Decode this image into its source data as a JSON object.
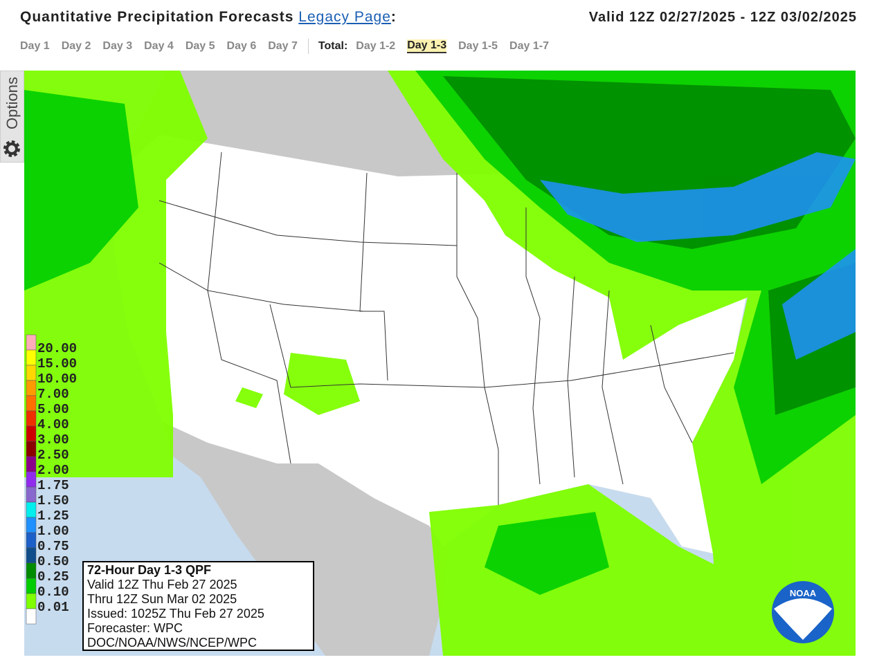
{
  "header": {
    "title": "Quantitative Precipitation Forecasts",
    "legacy_link": "Legacy Page",
    "colon": ":",
    "valid": "Valid 12Z 02/27/2025 - 12Z 03/02/2025"
  },
  "nav": {
    "days": [
      "Day 1",
      "Day 2",
      "Day 3",
      "Day 4",
      "Day 5",
      "Day 6",
      "Day 7"
    ],
    "total_label": "Total:",
    "totals": [
      "Day 1-2",
      "Day 1-3",
      "Day 1-5",
      "Day 1-7"
    ],
    "selected_total_index": 1
  },
  "options_tab": "Options",
  "legend": [
    {
      "label": "20.00",
      "color": "#ffaeb9"
    },
    {
      "label": "15.00",
      "color": "#ffff00"
    },
    {
      "label": "10.00",
      "color": "#ffd700"
    },
    {
      "label": "7.00",
      "color": "#ff9a00"
    },
    {
      "label": "5.00",
      "color": "#ff7000"
    },
    {
      "label": "4.00",
      "color": "#ee3000"
    },
    {
      "label": "3.00",
      "color": "#cd0000"
    },
    {
      "label": "2.50",
      "color": "#8b0000"
    },
    {
      "label": "2.00",
      "color": "#8b008b"
    },
    {
      "label": "1.75",
      "color": "#912cee"
    },
    {
      "label": "1.50",
      "color": "#8968cd"
    },
    {
      "label": "1.25",
      "color": "#00eeee"
    },
    {
      "label": "1.00",
      "color": "#1e90ff"
    },
    {
      "label": "0.75",
      "color": "#1c5fc8"
    },
    {
      "label": "0.50",
      "color": "#104e8b"
    },
    {
      "label": "0.25",
      "color": "#008b00"
    },
    {
      "label": "0.10",
      "color": "#00cd00"
    },
    {
      "label": "0.01",
      "color": "#7fff00"
    }
  ],
  "info_box": {
    "title": "72-Hour Day 1-3 QPF",
    "lines": [
      "Valid 12Z Thu Feb 27 2025",
      "Thru 12Z Sun Mar 02 2025",
      "Issued: 1025Z Thu Feb 27 2025",
      "Forecaster: WPC",
      "DOC/NOAA/NWS/NCEP/WPC"
    ]
  },
  "logo": "NOAA"
}
